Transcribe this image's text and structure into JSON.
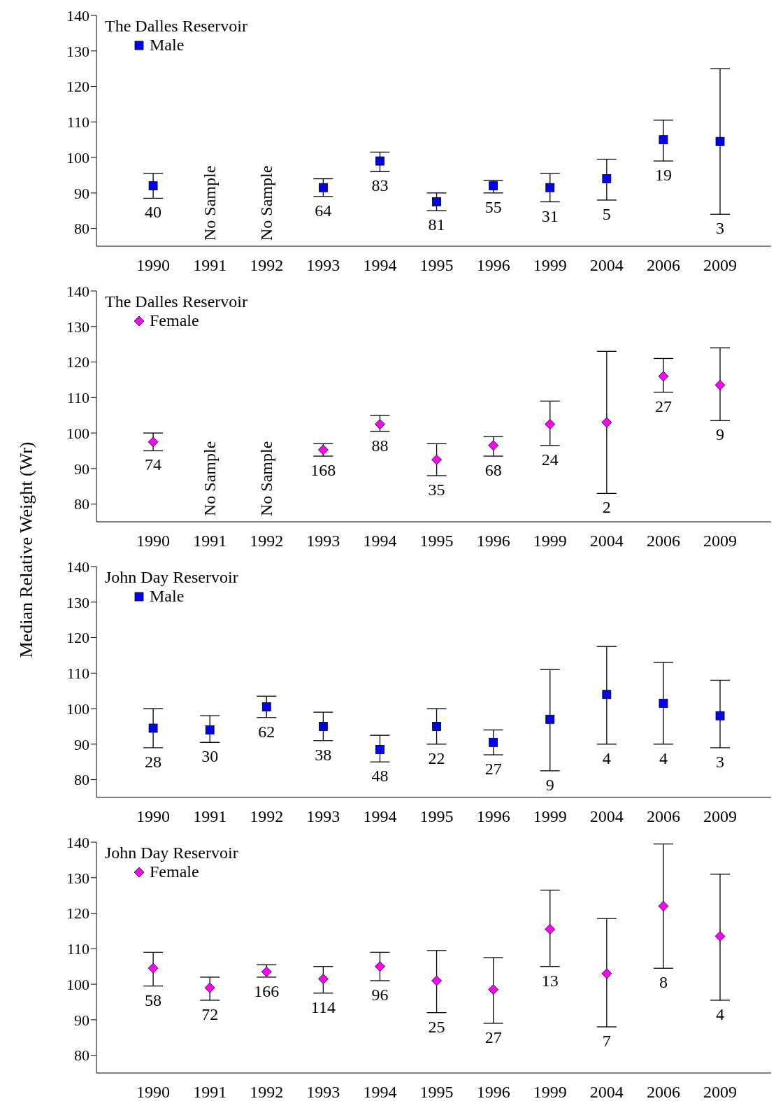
{
  "chart_data": [
    {
      "type": "scatter",
      "legend_title": "The Dalles Reservoir",
      "legend": "top left",
      "marker": "square",
      "categories": [
        "1990",
        "1991",
        "1992",
        "1993",
        "1994",
        "1995",
        "1996",
        "1999",
        "2004",
        "2006",
        "2009"
      ],
      "ylim": [
        75,
        140
      ],
      "yticks": [
        80,
        90,
        100,
        110,
        120,
        130,
        140
      ],
      "series": [
        {
          "name": "Male",
          "color": "#0000ff",
          "values": [
            92,
            null,
            null,
            91.5,
            99,
            87.5,
            92,
            91.5,
            94,
            105,
            104.5
          ],
          "errors": [
            [
              88.5,
              95.5
            ],
            null,
            null,
            [
              89,
              94
            ],
            [
              96,
              101.5
            ],
            [
              85,
              90
            ],
            [
              90,
              93.5
            ],
            [
              87.5,
              95.5
            ],
            [
              88,
              99.5
            ],
            [
              99,
              110.5
            ],
            [
              84,
              125
            ]
          ]
        }
      ],
      "annotations": [
        "40",
        "No Sample",
        "No Sample",
        "64",
        "83",
        "81",
        "55",
        "31",
        "5",
        "19",
        "3"
      ]
    },
    {
      "type": "scatter",
      "legend_title": "The Dalles Reservoir",
      "ylabel": "Median Relative Weight (Wr)",
      "legend": "top left",
      "marker": "diamond",
      "categories": [
        "1990",
        "1991",
        "1992",
        "1993",
        "1994",
        "1995",
        "1996",
        "1999",
        "2004",
        "2006",
        "2009"
      ],
      "ylim": [
        75,
        140
      ],
      "yticks": [
        80,
        90,
        100,
        110,
        120,
        130,
        140
      ],
      "series": [
        {
          "name": "Female",
          "color": "#ff00ff",
          "values": [
            97.5,
            null,
            null,
            95.3,
            102.5,
            92.5,
            96.5,
            102.5,
            103,
            116,
            113.5
          ],
          "errors": [
            [
              95,
              100
            ],
            null,
            null,
            [
              93.5,
              97
            ],
            [
              100.5,
              105
            ],
            [
              88,
              97
            ],
            [
              93.5,
              99
            ],
            [
              96.5,
              109
            ],
            [
              83,
              123
            ],
            [
              111.5,
              121
            ],
            [
              103.5,
              124
            ]
          ]
        }
      ],
      "annotations": [
        "74",
        "No Sample",
        "No Sample",
        "168",
        "88",
        "35",
        "68",
        "24",
        "2",
        "27",
        "9"
      ]
    },
    {
      "type": "scatter",
      "legend_title": "John Day Reservoir",
      "legend": "top left",
      "marker": "square",
      "categories": [
        "1990",
        "1991",
        "1992",
        "1993",
        "1994",
        "1995",
        "1996",
        "1999",
        "2004",
        "2006",
        "2009"
      ],
      "ylim": [
        75,
        140
      ],
      "yticks": [
        80,
        90,
        100,
        110,
        120,
        130,
        140
      ],
      "series": [
        {
          "name": "Male",
          "color": "#0000ff",
          "values": [
            94.5,
            94,
            100.5,
            95,
            88.5,
            95,
            90.5,
            97,
            104,
            101.5,
            98
          ],
          "errors": [
            [
              89,
              100
            ],
            [
              90.5,
              98
            ],
            [
              97.5,
              103.5
            ],
            [
              91,
              99
            ],
            [
              85,
              92.5
            ],
            [
              90,
              100
            ],
            [
              87,
              94
            ],
            [
              82.5,
              111
            ],
            [
              90,
              117.5
            ],
            [
              90,
              113
            ],
            [
              89,
              108
            ]
          ]
        }
      ],
      "annotations": [
        "28",
        "30",
        "62",
        "38",
        "48",
        "22",
        "27",
        "9",
        "4",
        "4",
        "3"
      ]
    },
    {
      "type": "scatter",
      "legend_title": "John Day Reservoir",
      "legend": "top left",
      "marker": "diamond",
      "categories": [
        "1990",
        "1991",
        "1992",
        "1993",
        "1994",
        "1995",
        "1996",
        "1999",
        "2004",
        "2006",
        "2009"
      ],
      "ylim": [
        75,
        140
      ],
      "yticks": [
        80,
        90,
        100,
        110,
        120,
        130,
        140
      ],
      "series": [
        {
          "name": "Female",
          "color": "#ff00ff",
          "values": [
            104.5,
            99,
            103.5,
            101.5,
            105,
            101,
            98.5,
            115.5,
            103,
            122,
            113.5
          ],
          "errors": [
            [
              99.5,
              109
            ],
            [
              95.5,
              102
            ],
            [
              102,
              105.5
            ],
            [
              97.5,
              105
            ],
            [
              101,
              109
            ],
            [
              92,
              109.5
            ],
            [
              89,
              107.5
            ],
            [
              105,
              126.5
            ],
            [
              88,
              118.5
            ],
            [
              104.5,
              139.5
            ],
            [
              95.5,
              131
            ]
          ]
        }
      ],
      "annotations": [
        "58",
        "72",
        "166",
        "114",
        "96",
        "25",
        "27",
        "13",
        "7",
        "8",
        "4"
      ]
    }
  ]
}
